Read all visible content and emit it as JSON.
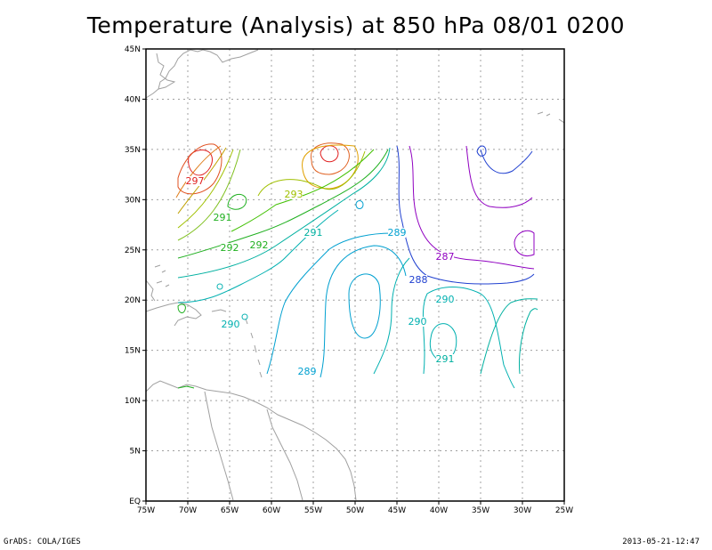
{
  "title": "Temperature (Analysis) at 850 hPa 08/01 0200",
  "footer": {
    "left": "GrADS: COLA/IGES",
    "right": "2013-05-21-12:47"
  },
  "axes": {
    "lon_labels": [
      "75W",
      "70W",
      "65W",
      "60W",
      "55W",
      "50W",
      "45W",
      "40W",
      "35W",
      "30W",
      "25W"
    ],
    "lat_labels": [
      "EQ",
      "5N",
      "10N",
      "15N",
      "20N",
      "25N",
      "30N",
      "35N",
      "40N",
      "45N"
    ]
  },
  "contour_labels": [
    {
      "text": "297",
      "color": "#e02020"
    },
    {
      "text": "293",
      "color": "#a0c000"
    },
    {
      "text": "291",
      "color": "#20b020"
    },
    {
      "text": "292",
      "color": "#20b020"
    },
    {
      "text": "292",
      "color": "#20b020"
    },
    {
      "text": "291",
      "color": "#00b0a0"
    },
    {
      "text": "289",
      "color": "#00a0d0"
    },
    {
      "text": "287",
      "color": "#9000c0"
    },
    {
      "text": "288",
      "color": "#2040d0"
    },
    {
      "text": "290",
      "color": "#00b0b0"
    },
    {
      "text": "290",
      "color": "#00b0b0"
    },
    {
      "text": "290",
      "color": "#00b0b0"
    },
    {
      "text": "291",
      "color": "#00b0a0"
    },
    {
      "text": "289",
      "color": "#00a0d0"
    }
  ],
  "colors": {
    "coast": "#a0a0a0",
    "grid": "#a0a0a0",
    "frame": "#000000"
  }
}
